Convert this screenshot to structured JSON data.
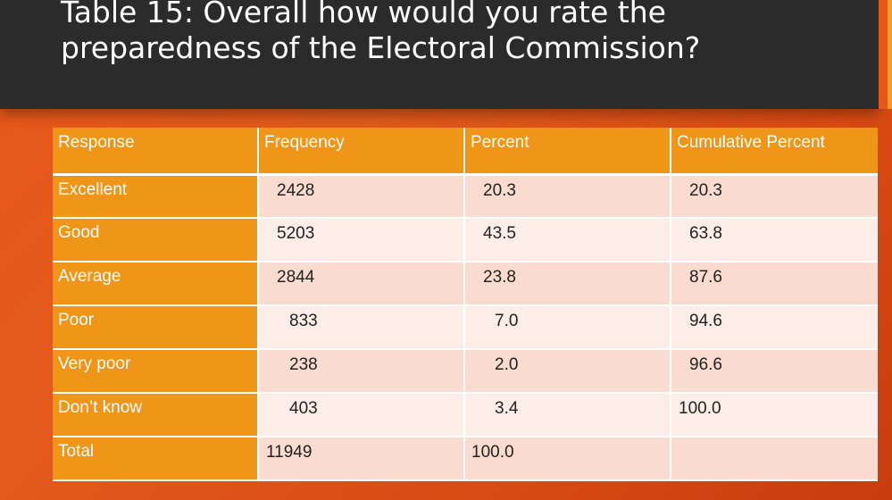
{
  "title": "Table 15: Overall how would you rate the preparedness of the Electoral Commission?",
  "table": {
    "headers": [
      "Response",
      "Frequency",
      "Percent",
      "Cumulative Percent"
    ],
    "rows": [
      {
        "response": "Excellent",
        "frequency": "2428",
        "percent": "20.3",
        "cumulative": "20.3"
      },
      {
        "response": "Good",
        "frequency": "5203",
        "percent": "43.5",
        "cumulative": "63.8"
      },
      {
        "response": "Average",
        "frequency": "2844",
        "percent": "23.8",
        "cumulative": "87.6"
      },
      {
        "response": "Poor",
        "frequency": "833",
        "percent": "7.0",
        "cumulative": "94.6"
      },
      {
        "response": "Very poor",
        "frequency": "238",
        "percent": "2.0",
        "cumulative": "96.6"
      },
      {
        "response": "Don’t know",
        "frequency": "403",
        "percent": "3.4",
        "cumulative": "100.0"
      },
      {
        "response": "Total",
        "frequency": "11949",
        "percent": "100.0",
        "cumulative": ""
      }
    ]
  },
  "colors": {
    "background": "#e25a1c",
    "title_bar": "#2b2b2b",
    "header_fill": "#ef9518",
    "row_odd": "#f9dccf",
    "row_even": "#fcede6"
  }
}
